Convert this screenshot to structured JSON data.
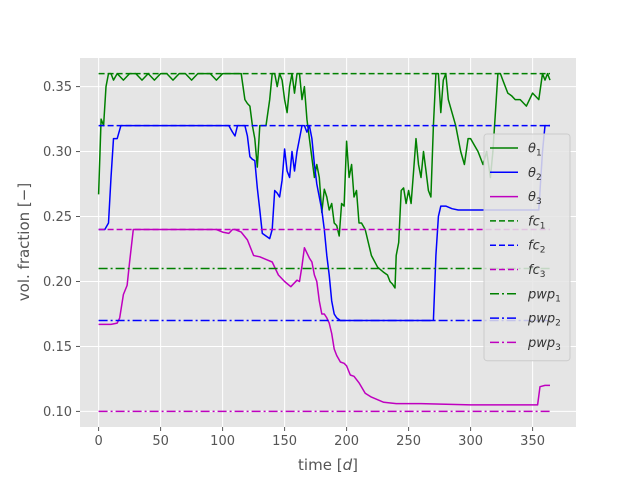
{
  "chart_data": {
    "type": "line",
    "title": "",
    "xlabel": "time [d]",
    "ylabel": "vol. fraction [−]",
    "xlim": [
      -15,
      385
    ],
    "ylim": [
      0.088,
      0.372
    ],
    "xticks": [
      0,
      50,
      100,
      150,
      200,
      250,
      300,
      350
    ],
    "xtick_labels": [
      "0",
      "50",
      "100",
      "150",
      "200",
      "250",
      "300",
      "350"
    ],
    "yticks": [
      0.1,
      0.15,
      0.2,
      0.25,
      0.3,
      0.35
    ],
    "ytick_labels": [
      "0.10",
      "0.15",
      "0.20",
      "0.25",
      "0.30",
      "0.35"
    ],
    "grid": true,
    "legend_position": "right",
    "series": [
      {
        "name": "θ1",
        "label_base": "θ",
        "label_sub": "1",
        "color": "#008000",
        "style": "solid",
        "x": [
          0,
          2,
          4,
          6,
          8,
          10,
          12,
          15,
          20,
          25,
          30,
          35,
          40,
          45,
          50,
          55,
          60,
          65,
          70,
          75,
          80,
          85,
          90,
          95,
          100,
          105,
          110,
          115,
          118,
          120,
          122,
          124,
          126,
          128,
          130,
          132,
          135,
          138,
          140,
          142,
          144,
          146,
          148,
          150,
          152,
          154,
          156,
          158,
          160,
          162,
          164,
          166,
          168,
          170,
          172,
          174,
          176,
          178,
          180,
          182,
          184,
          186,
          188,
          190,
          192,
          194,
          196,
          198,
          200,
          202,
          204,
          206,
          208,
          210,
          212,
          215,
          220,
          225,
          230,
          233,
          235,
          237,
          239,
          240,
          242,
          244,
          246,
          248,
          250,
          252,
          254,
          256,
          258,
          260,
          262,
          264,
          266,
          268,
          270,
          272,
          274,
          276,
          278,
          280,
          282,
          285,
          288,
          290,
          292,
          295,
          298,
          300,
          303,
          306,
          310,
          313,
          316,
          318,
          320,
          322,
          324,
          326,
          328,
          330,
          333,
          336,
          340,
          345,
          350,
          355,
          358,
          360,
          362,
          364
        ],
        "values": [
          0.267,
          0.325,
          0.32,
          0.35,
          0.36,
          0.36,
          0.355,
          0.36,
          0.355,
          0.36,
          0.36,
          0.355,
          0.36,
          0.355,
          0.36,
          0.36,
          0.355,
          0.36,
          0.36,
          0.355,
          0.36,
          0.36,
          0.36,
          0.355,
          0.36,
          0.36,
          0.36,
          0.36,
          0.34,
          0.337,
          0.335,
          0.32,
          0.31,
          0.288,
          0.32,
          0.32,
          0.32,
          0.34,
          0.36,
          0.36,
          0.35,
          0.36,
          0.355,
          0.34,
          0.33,
          0.35,
          0.36,
          0.345,
          0.36,
          0.36,
          0.34,
          0.35,
          0.325,
          0.31,
          0.295,
          0.28,
          0.29,
          0.28,
          0.253,
          0.271,
          0.265,
          0.255,
          0.26,
          0.245,
          0.243,
          0.235,
          0.26,
          0.258,
          0.308,
          0.28,
          0.29,
          0.265,
          0.27,
          0.245,
          0.245,
          0.24,
          0.22,
          0.211,
          0.207,
          0.205,
          0.2,
          0.198,
          0.195,
          0.22,
          0.23,
          0.27,
          0.272,
          0.26,
          0.27,
          0.26,
          0.285,
          0.31,
          0.29,
          0.28,
          0.3,
          0.285,
          0.27,
          0.265,
          0.32,
          0.36,
          0.36,
          0.33,
          0.355,
          0.36,
          0.34,
          0.33,
          0.32,
          0.31,
          0.3,
          0.29,
          0.31,
          0.31,
          0.305,
          0.3,
          0.29,
          0.3,
          0.28,
          0.3,
          0.33,
          0.36,
          0.36,
          0.355,
          0.35,
          0.345,
          0.343,
          0.34,
          0.34,
          0.335,
          0.345,
          0.34,
          0.36,
          0.355,
          0.36,
          0.355
        ]
      },
      {
        "name": "θ2",
        "label_base": "θ",
        "label_sub": "2",
        "color": "#0000ff",
        "style": "solid",
        "x": [
          0,
          5,
          8,
          10,
          12,
          15,
          18,
          20,
          23,
          25,
          30,
          40,
          60,
          80,
          100,
          105,
          108,
          110,
          112,
          115,
          118,
          120,
          122,
          124,
          126,
          128,
          130,
          132,
          135,
          138,
          140,
          142,
          144,
          146,
          148,
          150,
          152,
          154,
          156,
          158,
          160,
          162,
          164,
          166,
          168,
          170,
          172,
          174,
          176,
          178,
          180,
          182,
          184,
          186,
          188,
          190,
          192,
          195,
          200,
          220,
          240,
          260,
          265,
          268,
          270,
          272,
          274,
          276,
          280,
          285,
          290,
          300,
          320,
          330,
          340,
          350,
          355,
          358,
          360,
          362,
          364
        ],
        "values": [
          0.24,
          0.24,
          0.245,
          0.28,
          0.31,
          0.31,
          0.32,
          0.32,
          0.32,
          0.32,
          0.32,
          0.32,
          0.32,
          0.32,
          0.32,
          0.32,
          0.315,
          0.312,
          0.32,
          0.32,
          0.32,
          0.312,
          0.296,
          0.294,
          0.293,
          0.272,
          0.255,
          0.237,
          0.235,
          0.233,
          0.24,
          0.27,
          0.268,
          0.265,
          0.278,
          0.302,
          0.285,
          0.28,
          0.3,
          0.285,
          0.3,
          0.31,
          0.32,
          0.32,
          0.315,
          0.32,
          0.31,
          0.29,
          0.275,
          0.265,
          0.255,
          0.24,
          0.22,
          0.205,
          0.185,
          0.175,
          0.172,
          0.17,
          0.17,
          0.17,
          0.17,
          0.17,
          0.17,
          0.17,
          0.17,
          0.22,
          0.25,
          0.258,
          0.258,
          0.256,
          0.255,
          0.255,
          0.255,
          0.255,
          0.255,
          0.255,
          0.255,
          0.3,
          0.32,
          0.32,
          0.32
        ]
      },
      {
        "name": "θ3",
        "label_base": "θ",
        "label_sub": "3",
        "color": "#bf00bf",
        "style": "solid",
        "x": [
          0,
          5,
          10,
          15,
          17,
          20,
          23,
          25,
          28,
          30,
          40,
          60,
          80,
          95,
          100,
          105,
          108,
          110,
          115,
          120,
          125,
          130,
          135,
          140,
          145,
          150,
          155,
          160,
          162,
          164,
          166,
          168,
          170,
          172,
          174,
          176,
          178,
          180,
          182,
          184,
          186,
          188,
          190,
          192,
          195,
          198,
          200,
          203,
          206,
          210,
          215,
          220,
          230,
          240,
          260,
          300,
          350,
          352,
          354,
          356,
          360,
          364
        ],
        "values": [
          0.167,
          0.167,
          0.167,
          0.168,
          0.172,
          0.19,
          0.197,
          0.215,
          0.24,
          0.24,
          0.24,
          0.24,
          0.24,
          0.24,
          0.238,
          0.237,
          0.24,
          0.24,
          0.238,
          0.232,
          0.22,
          0.219,
          0.217,
          0.215,
          0.205,
          0.2,
          0.196,
          0.201,
          0.2,
          0.212,
          0.226,
          0.222,
          0.218,
          0.215,
          0.205,
          0.2,
          0.185,
          0.175,
          0.175,
          0.172,
          0.168,
          0.16,
          0.148,
          0.143,
          0.138,
          0.137,
          0.135,
          0.128,
          0.127,
          0.122,
          0.114,
          0.111,
          0.107,
          0.106,
          0.106,
          0.105,
          0.105,
          0.105,
          0.105,
          0.119,
          0.12,
          0.12
        ]
      },
      {
        "name": "fc1",
        "label_base": "fc",
        "label_sub": "1",
        "color": "#008000",
        "style": "dashed",
        "x": [
          0,
          364
        ],
        "values": [
          0.36,
          0.36
        ]
      },
      {
        "name": "fc2",
        "label_base": "fc",
        "label_sub": "2",
        "color": "#0000ff",
        "style": "dashed",
        "x": [
          0,
          364
        ],
        "values": [
          0.32,
          0.32
        ]
      },
      {
        "name": "fc3",
        "label_base": "fc",
        "label_sub": "3",
        "color": "#bf00bf",
        "style": "dashed",
        "x": [
          0,
          364
        ],
        "values": [
          0.24,
          0.24
        ]
      },
      {
        "name": "pwp1",
        "label_base": "pwp",
        "label_sub": "1",
        "color": "#008000",
        "style": "dashdot",
        "x": [
          0,
          364
        ],
        "values": [
          0.21,
          0.21
        ]
      },
      {
        "name": "pwp2",
        "label_base": "pwp",
        "label_sub": "2",
        "color": "#0000ff",
        "style": "dashdot",
        "x": [
          0,
          364
        ],
        "values": [
          0.17,
          0.17
        ]
      },
      {
        "name": "pwp3",
        "label_base": "pwp",
        "label_sub": "3",
        "color": "#bf00bf",
        "style": "dashdot",
        "x": [
          0,
          364
        ],
        "values": [
          0.1,
          0.1
        ]
      }
    ]
  },
  "colors": {
    "plot_background": "#e5e5e5",
    "grid": "#ffffff",
    "text": "#555555",
    "legend_background": "#e5e5e5",
    "legend_border": "#cccccc"
  }
}
